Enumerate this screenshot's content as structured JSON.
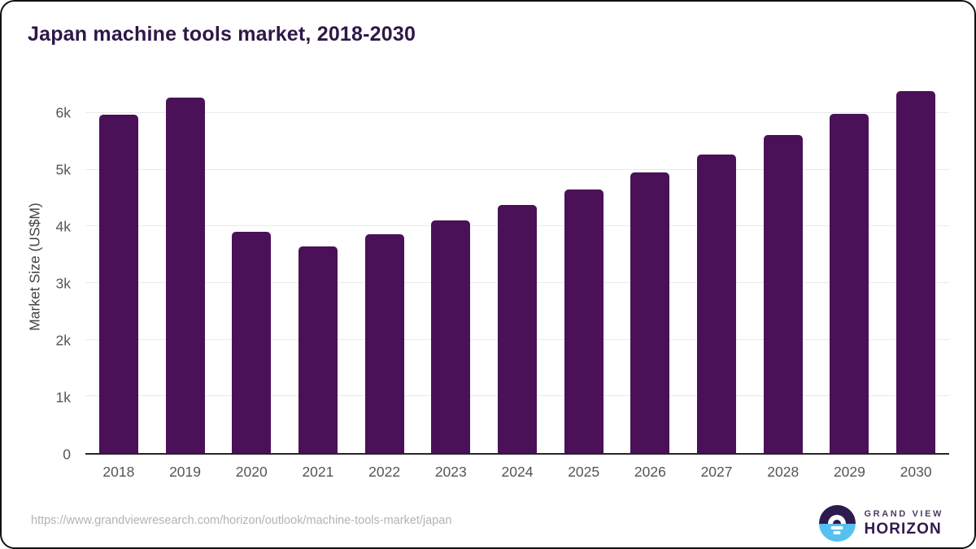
{
  "chart_data": {
    "type": "bar",
    "title": "Japan machine tools market, 2018-2030",
    "categories": [
      "2018",
      "2019",
      "2020",
      "2021",
      "2022",
      "2023",
      "2024",
      "2025",
      "2026",
      "2027",
      "2028",
      "2029",
      "2030"
    ],
    "values": [
      5970,
      6270,
      3910,
      3640,
      3860,
      4110,
      4380,
      4650,
      4950,
      5270,
      5610,
      5980,
      6390
    ],
    "xlabel": "",
    "ylabel": "Market Size (US$M)",
    "ylim": [
      0,
      6600
    ],
    "yticks": [
      {
        "value": 0,
        "label": "0"
      },
      {
        "value": 1000,
        "label": "1k"
      },
      {
        "value": 2000,
        "label": "2k"
      },
      {
        "value": 3000,
        "label": "3k"
      },
      {
        "value": 4000,
        "label": "4k"
      },
      {
        "value": 5000,
        "label": "5k"
      },
      {
        "value": 6000,
        "label": "6k"
      }
    ],
    "grid": true,
    "legend_position": "none",
    "bar_color": "#4a1158"
  },
  "footer": {
    "source_url": "https://www.grandviewresearch.com/horizon/outlook/machine-tools-market/japan",
    "brand": {
      "name_line1": "GRAND VIEW",
      "name_line2": "HORIZON",
      "icon": "horizon-sunrise-icon",
      "icon_top_color": "#2d1b4e",
      "icon_bottom_color": "#56c1f0"
    }
  },
  "colors": {
    "title_text": "#2f1747",
    "bar": "#4a1158",
    "axis_line": "#262626",
    "gridline": "#e9e9e9",
    "tick_label": "#555555",
    "axis_title": "#444444",
    "url_text": "#b3b3b3",
    "card_border": "#111111"
  }
}
